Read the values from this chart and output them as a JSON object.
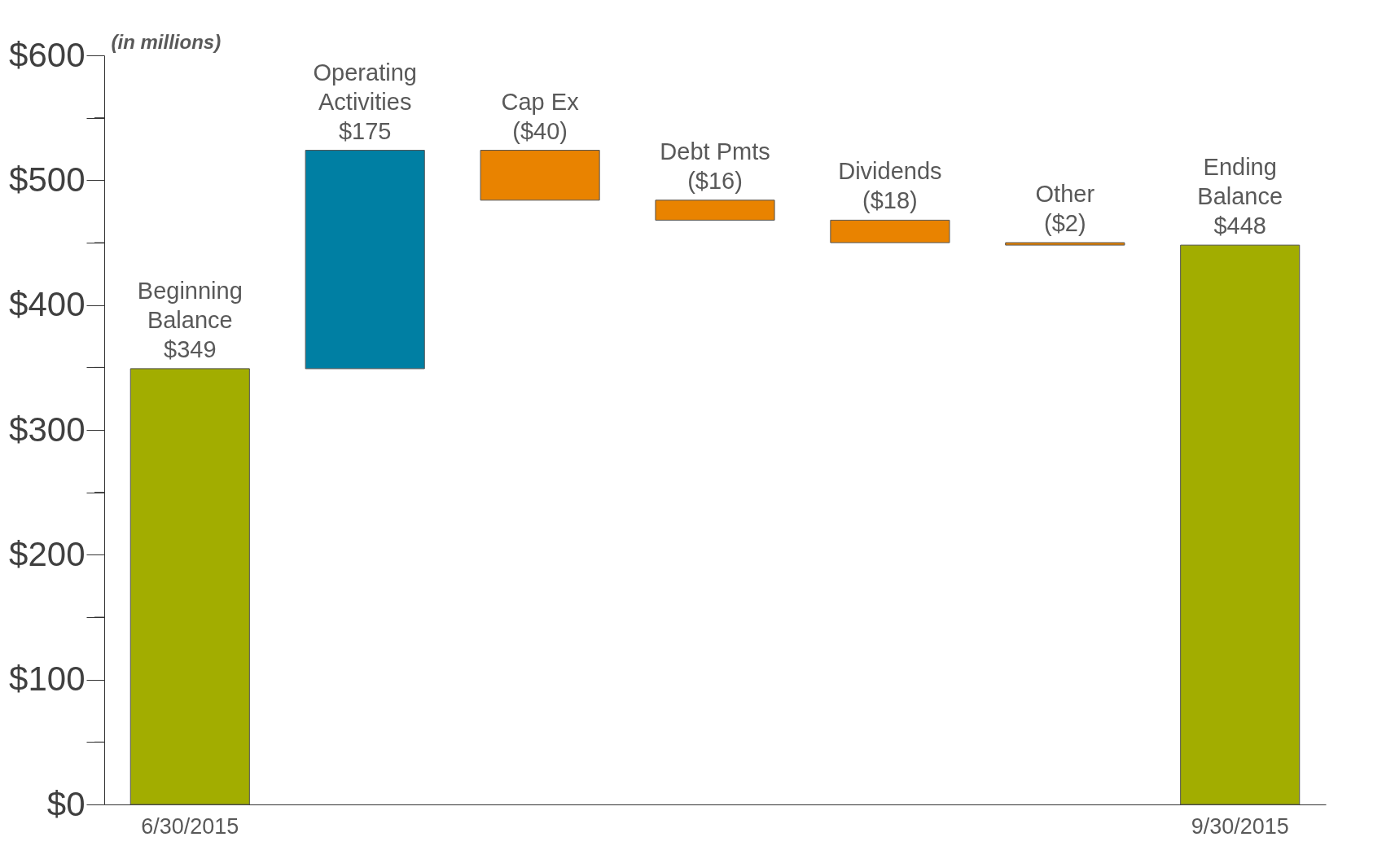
{
  "chart_data": {
    "type": "bar",
    "ylabel": "(in millions)",
    "categories": [
      "6/30/2015",
      null,
      null,
      null,
      null,
      null,
      "9/30/2015"
    ],
    "values": [
      349,
      175,
      -40,
      -16,
      -18,
      -2,
      448
    ],
    "base": [
      0,
      349,
      524,
      484,
      468,
      450,
      0
    ],
    "colors": [
      "#a2ad00",
      "#007fa3",
      "#e98300",
      "#e98300",
      "#e98300",
      "#e98300",
      "#a2ad00"
    ],
    "value_labels": [
      "Beginning Balance $349",
      "Operating Activities $175",
      "Cap Ex ($40)",
      "Debt Pmts ($16)",
      "Dividends ($18)",
      "Other ($2)",
      "Ending Balance $448"
    ],
    "ylim": [
      0,
      600
    ],
    "yticks": [
      {
        "value": 0,
        "label": "$0"
      },
      {
        "value": 50,
        "label": null
      },
      {
        "value": 100,
        "label": "$100"
      },
      {
        "value": 150,
        "label": null
      },
      {
        "value": 200,
        "label": "$200"
      },
      {
        "value": 250,
        "label": null
      },
      {
        "value": 300,
        "label": "$300"
      },
      {
        "value": 350,
        "label": null
      },
      {
        "value": 400,
        "label": "$400"
      },
      {
        "value": 450,
        "label": null
      },
      {
        "value": 500,
        "label": "$500"
      },
      {
        "value": 550,
        "label": null
      },
      {
        "value": 600,
        "label": "$600"
      }
    ],
    "grid": false
  }
}
